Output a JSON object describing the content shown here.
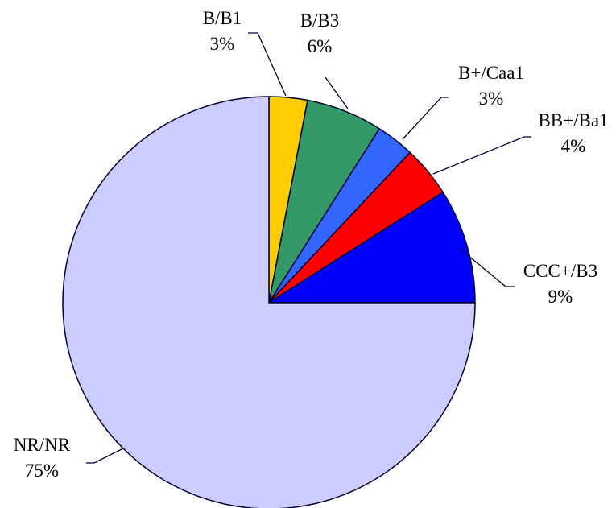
{
  "chart_data": {
    "type": "pie",
    "title": "",
    "start": "12 o'clock",
    "direction": "clockwise",
    "legend": "none (labels beside slices with leader lines)",
    "slices": [
      {
        "label": "B/B1",
        "value": 3,
        "percent_label": "3%",
        "color": "#FFCC00"
      },
      {
        "label": "B/B3",
        "value": 6,
        "percent_label": "6%",
        "color": "#339966"
      },
      {
        "label": "B+/Caa1",
        "value": 3,
        "percent_label": "3%",
        "color": "#3366FF"
      },
      {
        "label": "BB+/Ba1",
        "value": 4,
        "percent_label": "4%",
        "color": "#FF0000"
      },
      {
        "label": "CCC+/B3",
        "value": 9,
        "percent_label": "9%",
        "color": "#0000FF"
      },
      {
        "label": "NR/NR",
        "value": 75,
        "percent_label": "75%",
        "color": "#CCCCFF"
      }
    ],
    "border_color": "#000033"
  }
}
